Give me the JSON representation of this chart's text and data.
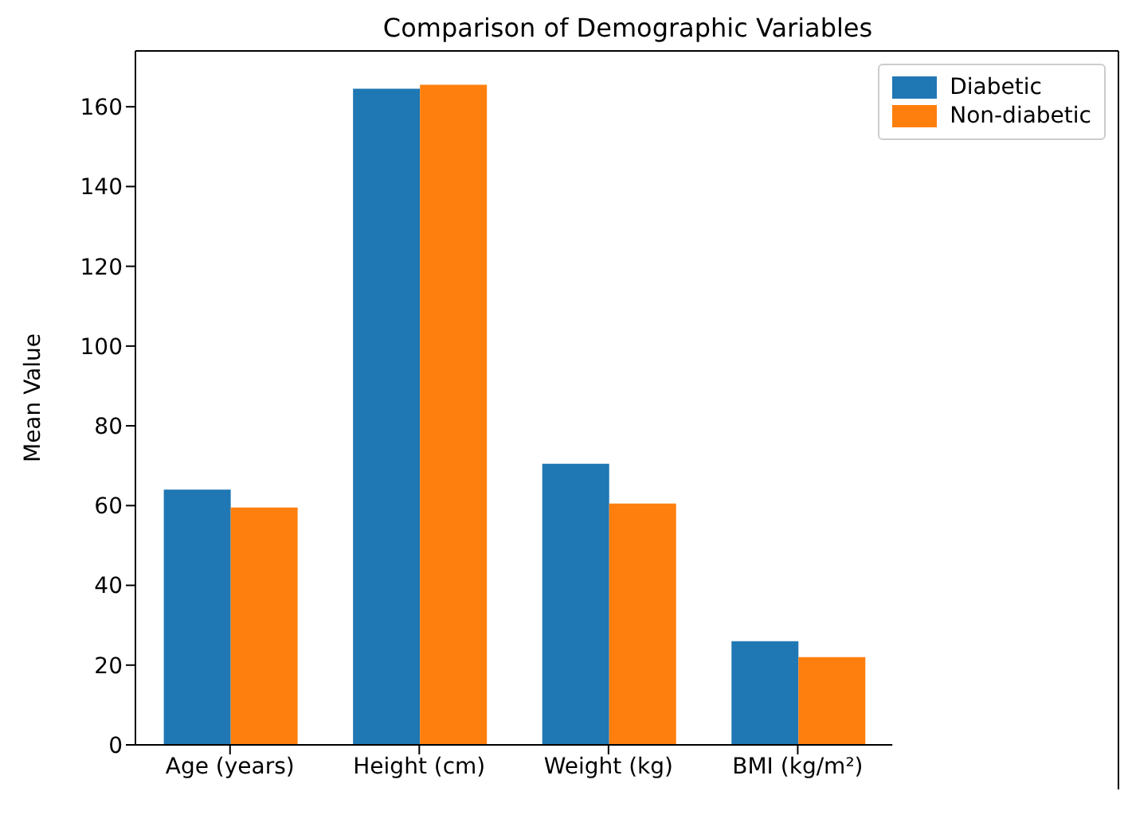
{
  "chart_data": {
    "type": "bar",
    "title": "Comparison of Demographic Variables",
    "ylabel": "Mean Value",
    "categories": [
      "Age (years)",
      "Height (cm)",
      "Weight (kg)",
      "BMI (kg/m²)"
    ],
    "series": [
      {
        "name": "Diabetic",
        "color": "#1f77b4",
        "values": [
          64,
          164.5,
          70.5,
          26
        ]
      },
      {
        "name": "Non-diabetic",
        "color": "#ff7f0e",
        "values": [
          59.5,
          165.5,
          60.5,
          22
        ]
      }
    ],
    "ylim": [
      0,
      174
    ],
    "yticks": [
      0,
      20,
      40,
      60,
      80,
      100,
      120,
      140,
      160
    ],
    "grid": false,
    "legend": "top right"
  }
}
